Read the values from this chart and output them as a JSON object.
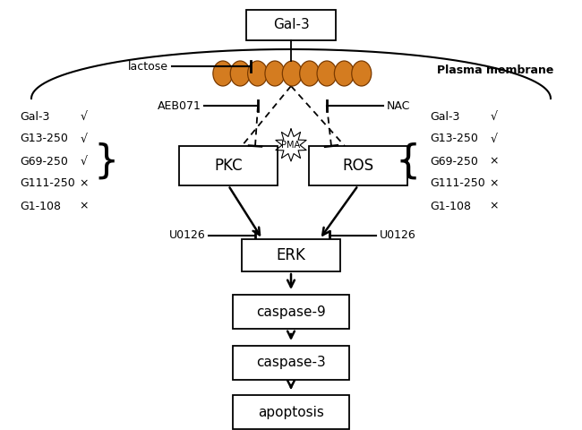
{
  "bg_color": "#ffffff",
  "receptor_color": "#d47c20",
  "receptor_edge": "#7a3a00",
  "left_labels": [
    "Gal-3",
    "G13-250",
    "G69-250",
    "G111-250",
    "G1-108"
  ],
  "left_checks": [
    "√",
    "√",
    "√",
    "×",
    "×"
  ],
  "right_labels": [
    "Gal-3",
    "G13-250",
    "G69-250",
    "G111-250",
    "G1-108"
  ],
  "right_checks": [
    "√",
    "√",
    "×",
    "×",
    "×"
  ],
  "membrane_label": "Plasma membrane",
  "gal3_label": "Gal-3",
  "lactose_label": "lactose",
  "aeb071_label": "AEB071",
  "nac_label": "NAC",
  "pma_label": "PMA",
  "pkc_label": "PKC",
  "ros_label": "ROS",
  "u0126_label": "U0126",
  "erk_label": "ERK",
  "casp9_label": "caspase-9",
  "casp3_label": "caspase-3",
  "apopt_label": "apoptosis"
}
